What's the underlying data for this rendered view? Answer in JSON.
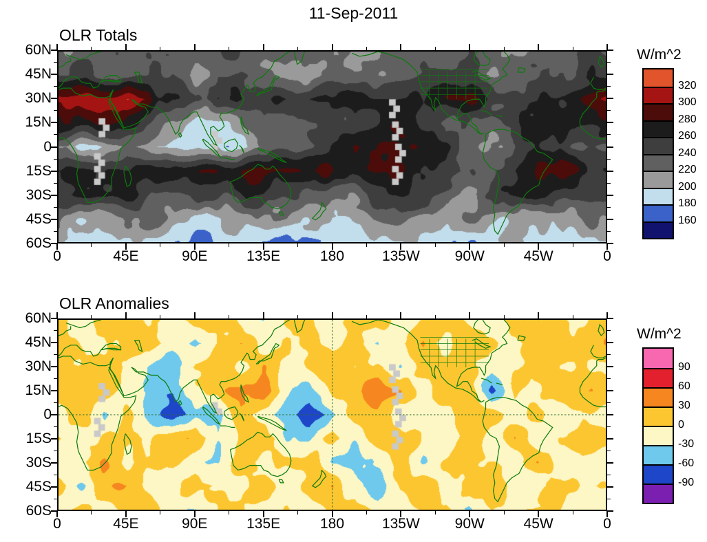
{
  "page_title": "11-Sep-2011",
  "panels": [
    {
      "id": "olr-totals",
      "title": "OLR Totals",
      "colorbar": {
        "label": "W/m^2",
        "ticks": [
          "320",
          "300",
          "280",
          "260",
          "240",
          "220",
          "200",
          "180",
          "160"
        ]
      },
      "x_ticks": [
        "0",
        "45E",
        "90E",
        "135E",
        "180",
        "135W",
        "90W",
        "45W",
        "0"
      ],
      "y_ticks": [
        "60N",
        "45N",
        "30N",
        "15N",
        "0",
        "15S",
        "30S",
        "45S",
        "60S"
      ]
    },
    {
      "id": "olr-anomalies",
      "title": "OLR Anomalies",
      "colorbar": {
        "label": "W/m^2",
        "ticks": [
          "90",
          "60",
          "30",
          "0",
          "-30",
          "-60",
          "-90"
        ]
      },
      "x_ticks": [
        "0",
        "45E",
        "90E",
        "135E",
        "180",
        "135W",
        "90W",
        "45W",
        "0"
      ],
      "y_ticks": [
        "60N",
        "45N",
        "30N",
        "15N",
        "0",
        "15S",
        "30S",
        "45S",
        "60S"
      ]
    }
  ],
  "chart_data": [
    {
      "type": "heatmap",
      "title": "OLR Totals",
      "date": "11-Sep-2011",
      "units": "W/m^2",
      "lon_range": [
        0,
        360
      ],
      "lat_range": [
        60,
        -60
      ],
      "grid_step_deg": 15,
      "lat_rows": [
        60,
        45,
        30,
        15,
        0,
        -15,
        -30,
        -45,
        -60
      ],
      "levels": [
        160,
        180,
        200,
        220,
        240,
        260,
        280,
        300,
        320
      ],
      "palette_top_to_bottom": [
        "#E2542C",
        "#A31412",
        "#4C0C0A",
        "#1C1C1C",
        "#3E3E3E",
        "#606060",
        "#9A9A9A",
        "#C2DEEC",
        "#3A62C8",
        "#11116E"
      ],
      "missing_color": "#c9c9c9",
      "coastline_color": "#0B7A0B",
      "values": [
        [
          230,
          226,
          232,
          236,
          230,
          224,
          230,
          236,
          230,
          224,
          220,
          226,
          230,
          224,
          230,
          236,
          230,
          224,
          230,
          224,
          220,
          226,
          230,
          232,
          230
        ],
        [
          244,
          240,
          234,
          240,
          250,
          238,
          205,
          244,
          250,
          234,
          210,
          205,
          240,
          234,
          230,
          240,
          250,
          244,
          234,
          224,
          230,
          236,
          240,
          246,
          244
        ],
        [
          312,
          322,
          316,
          310,
          295,
          250,
          230,
          250,
          262,
          256,
          260,
          266,
          260,
          266,
          270,
          266,
          260,
          270,
          280,
          260,
          250,
          256,
          270,
          292,
          310
        ],
        [
          282,
          286,
          292,
          280,
          250,
          210,
          196,
          206,
          216,
          230,
          226,
          236,
          250,
          260,
          270,
          266,
          256,
          230,
          240,
          230,
          250,
          262,
          272,
          276,
          282
        ],
        [
          230,
          200,
          194,
          216,
          206,
          194,
          186,
          196,
          190,
          210,
          232,
          252,
          272,
          286,
          290,
          286,
          280,
          260,
          230,
          216,
          226,
          276,
          268,
          240,
          230
        ],
        [
          262,
          250,
          240,
          256,
          266,
          270,
          266,
          276,
          286,
          290,
          286,
          280,
          276,
          280,
          286,
          270,
          256,
          250,
          240,
          230,
          252,
          282,
          286,
          270,
          262
        ],
        [
          240,
          250,
          262,
          256,
          250,
          240,
          234,
          246,
          256,
          262,
          250,
          230,
          220,
          236,
          250,
          256,
          246,
          234,
          224,
          240,
          256,
          262,
          250,
          246,
          240
        ],
        [
          214,
          204,
          196,
          210,
          220,
          216,
          204,
          196,
          210,
          220,
          216,
          204,
          196,
          206,
          216,
          220,
          210,
          200,
          210,
          216,
          204,
          196,
          206,
          216,
          214
        ],
        [
          196,
          186,
          190,
          200,
          196,
          186,
          180,
          190,
          196,
          186,
          180,
          190,
          196,
          190,
          186,
          190,
          196,
          186,
          180,
          190,
          196,
          190,
          186,
          190,
          196
        ]
      ],
      "missing_strips": [
        [
          221,
          30,
          18
        ],
        [
          223,
          16,
          4
        ],
        [
          225,
          2,
          -10
        ],
        [
          223,
          -12,
          -24
        ],
        [
          30,
          18,
          6
        ],
        [
          27,
          -4,
          -22
        ],
        [
          104,
          10,
          0
        ]
      ],
      "ref_lines": null
    },
    {
      "type": "heatmap",
      "title": "OLR Anomalies",
      "date": "11-Sep-2011",
      "units": "W/m^2",
      "lon_range": [
        0,
        360
      ],
      "lat_range": [
        60,
        -60
      ],
      "grid_step_deg": 15,
      "lat_rows": [
        60,
        45,
        30,
        15,
        0,
        -15,
        -30,
        -45,
        -60
      ],
      "levels": [
        -90,
        -60,
        -30,
        0,
        30,
        60,
        90
      ],
      "palette_top_to_bottom": [
        "#F768B0",
        "#E2202E",
        "#F6861F",
        "#FCC630",
        "#FDF7C5",
        "#6EC9EC",
        "#1E46C8",
        "#7B1FB0"
      ],
      "missing_color": "#c9c9c9",
      "coastline_color": "#0B7A0B",
      "values": [
        [
          8,
          -12,
          6,
          16,
          -6,
          -18,
          10,
          22,
          -10,
          -28,
          6,
          14,
          -6,
          10,
          20,
          -14,
          6,
          16,
          -10,
          -24,
          10,
          20,
          6,
          -6,
          8
        ],
        [
          22,
          6,
          -16,
          10,
          26,
          -12,
          -32,
          16,
          30,
          -22,
          6,
          20,
          -12,
          16,
          -26,
          10,
          30,
          -16,
          6,
          20,
          -12,
          16,
          26,
          6,
          22
        ],
        [
          6,
          16,
          -6,
          10,
          -22,
          -40,
          16,
          26,
          -12,
          30,
          -16,
          6,
          16,
          -6,
          20,
          -30,
          10,
          6,
          26,
          -16,
          6,
          16,
          -6,
          10,
          6
        ],
        [
          26,
          10,
          30,
          -10,
          -32,
          -60,
          -22,
          16,
          46,
          62,
          -22,
          -40,
          10,
          26,
          42,
          32,
          -12,
          20,
          36,
          -70,
          10,
          -16,
          22,
          30,
          26
        ],
        [
          -10,
          22,
          -30,
          10,
          -42,
          -72,
          -30,
          -52,
          20,
          -22,
          -62,
          -92,
          -42,
          10,
          16,
          -10,
          6,
          -16,
          10,
          26,
          -12,
          16,
          -22,
          6,
          -10
        ],
        [
          16,
          -16,
          10,
          22,
          -12,
          16,
          30,
          -22,
          10,
          26,
          -16,
          -32,
          10,
          -22,
          16,
          30,
          -12,
          -26,
          16,
          -12,
          22,
          -32,
          10,
          16,
          16
        ],
        [
          -22,
          10,
          26,
          -16,
          6,
          20,
          -12,
          -36,
          16,
          -22,
          10,
          26,
          -42,
          -40,
          -16,
          20,
          -26,
          6,
          16,
          -12,
          -22,
          35,
          -12,
          6,
          -22
        ],
        [
          10,
          -26,
          16,
          20,
          -12,
          -30,
          20,
          10,
          -22,
          16,
          -36,
          6,
          20,
          -16,
          -46,
          10,
          26,
          -16,
          6,
          20,
          -12,
          -30,
          16,
          10,
          10
        ],
        [
          -16,
          10,
          -20,
          6,
          16,
          -10,
          -30,
          10,
          20,
          -16,
          6,
          -26,
          10,
          16,
          -10,
          -20,
          6,
          16,
          -26,
          10,
          -16,
          6,
          10,
          -16,
          -16
        ]
      ],
      "missing_strips": [
        [
          221,
          32,
          20
        ],
        [
          223,
          18,
          6
        ],
        [
          225,
          4,
          -8
        ],
        [
          223,
          -10,
          -20
        ],
        [
          30,
          20,
          8
        ],
        [
          27,
          -2,
          -14
        ],
        [
          104,
          8,
          0
        ]
      ],
      "ref_lines": {
        "lon": 180,
        "lat": 0
      }
    }
  ]
}
